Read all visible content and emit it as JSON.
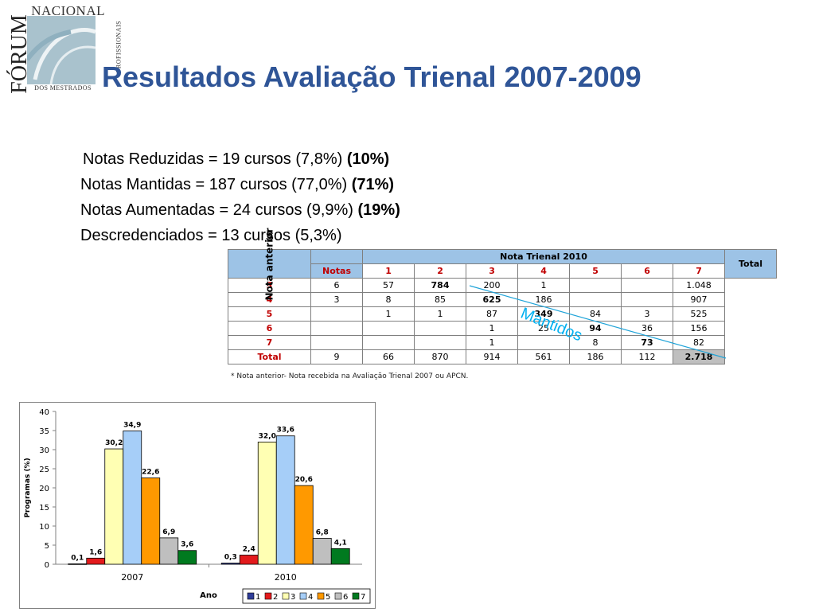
{
  "logo": {
    "top_word": "NACIONAL",
    "side_word": "FÓRUM",
    "right_word": "PROFISSIONAIS",
    "bottom_word": "DOS MESTRADOS"
  },
  "title": "Resultados Avaliação Trienal 2007-2009",
  "notes": [
    {
      "text": "Notas Reduzidas = 19 cursos (7,8%) ",
      "bold": "(10%)"
    },
    {
      "text": "Notas Mantidas = 187 cursos (77,0%) ",
      "bold": "(71%)"
    },
    {
      "text": "Notas Aumentadas = 24 cursos (9,9%) ",
      "bold": "(19%)"
    },
    {
      "text": "Descredenciados = 13 cursos (5,3%)",
      "bold": ""
    }
  ],
  "table": {
    "side_label": "Nota anterior",
    "group_header": "Nota Trienal 2010",
    "notas_label": "Notas",
    "columns": [
      "1",
      "2",
      "3",
      "4",
      "5",
      "6",
      "7"
    ],
    "total_label": "Total",
    "rows": [
      {
        "label": "3",
        "cells": [
          "6",
          "57",
          "784",
          "200",
          "1",
          "",
          ""
        ],
        "total": "1.048"
      },
      {
        "label": "4",
        "cells": [
          "3",
          "8",
          "85",
          "625",
          "186",
          "",
          ""
        ],
        "total": "907"
      },
      {
        "label": "5",
        "cells": [
          "",
          "1",
          "1",
          "87",
          "349",
          "84",
          "3"
        ],
        "total": "525"
      },
      {
        "label": "6",
        "cells": [
          "",
          "",
          "",
          "1",
          "25",
          "94",
          "36"
        ],
        "total": "156"
      },
      {
        "label": "7",
        "cells": [
          "",
          "",
          "",
          "1",
          "",
          "8",
          "73"
        ],
        "total": "82"
      },
      {
        "label": "Total",
        "cells": [
          "9",
          "66",
          "870",
          "914",
          "561",
          "186",
          "112"
        ],
        "total": "2.718"
      }
    ],
    "footnote": "* Nota anterior- Nota recebida na Avaliação Trienal 2007 ou APCN.",
    "annotation": "Mantidos",
    "annotation_color": "#00b0f0"
  },
  "chart_data": {
    "type": "bar",
    "categories": [
      "2007",
      "2010"
    ],
    "series": [
      {
        "name": "1",
        "values": [
          0.1,
          0.3
        ],
        "color": "#2f3d99"
      },
      {
        "name": "2",
        "values": [
          1.6,
          2.4
        ],
        "color": "#e31a1c"
      },
      {
        "name": "3",
        "values": [
          30.2,
          32.0
        ],
        "color": "#ffffb3"
      },
      {
        "name": "4",
        "values": [
          34.9,
          33.6
        ],
        "color": "#a6cef8"
      },
      {
        "name": "5",
        "values": [
          22.6,
          20.6
        ],
        "color": "#ff9900"
      },
      {
        "name": "6",
        "values": [
          6.9,
          6.8
        ],
        "color": "#bfbfbf"
      },
      {
        "name": "7",
        "values": [
          3.6,
          4.1
        ],
        "color": "#007a1f"
      }
    ],
    "data_labels": [
      [
        "0,1",
        "1,6",
        "30,2",
        "34,9",
        "22,6",
        "6,9",
        "3,6"
      ],
      [
        "0,3",
        "2,4",
        "32,0",
        "33,6",
        "20,6",
        "6,8",
        "4,1"
      ]
    ],
    "ylabel": "Programas (%)",
    "xlabel": "Ano",
    "ylim": [
      0,
      40
    ],
    "yticks": [
      0,
      5,
      10,
      15,
      20,
      25,
      30,
      35,
      40
    ],
    "legend_position": "bottom-right",
    "grid": false
  }
}
